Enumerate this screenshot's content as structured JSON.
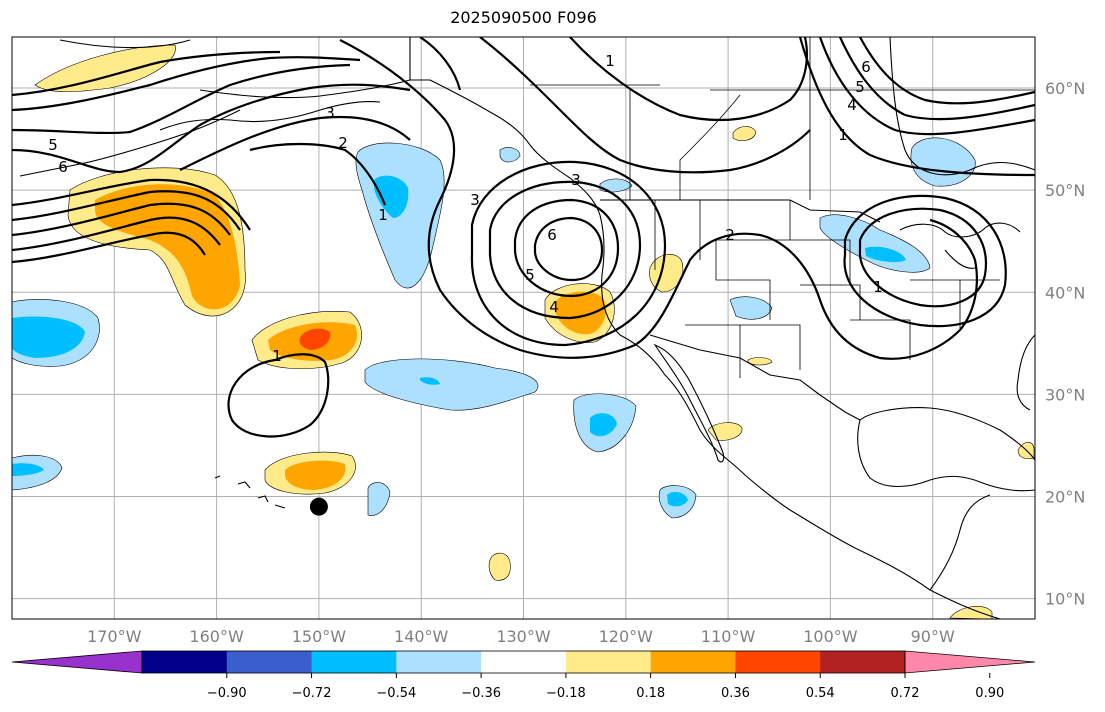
{
  "title": "2025090500 F096",
  "map": {
    "projection": "cylindrical",
    "extent": {
      "lon": [
        -180,
        -80
      ],
      "lat": [
        8,
        65
      ]
    },
    "lon_ticks": [
      "170°W",
      "160°W",
      "150°W",
      "140°W",
      "130°W",
      "120°W",
      "110°W",
      "100°W",
      "90°W"
    ],
    "lat_ticks": [
      "60°N",
      "50°N",
      "40°N",
      "30°N",
      "20°N",
      "10°N"
    ],
    "grid": true,
    "marker": {
      "lon": -150,
      "lat": 19,
      "symbol": "black-dot"
    }
  },
  "contour_labels": [
    "5",
    "6",
    "3",
    "2",
    "1",
    "6",
    "5",
    "4",
    "3",
    "6",
    "5",
    "4",
    "1",
    "1",
    "1",
    "1",
    "2",
    "3"
  ],
  "colorbar": {
    "ticks": [
      "−0.90",
      "−0.72",
      "−0.54",
      "−0.36",
      "−0.18",
      "0.18",
      "0.36",
      "0.54",
      "0.72",
      "0.90"
    ],
    "colors": [
      "#9932CC",
      "#00008B",
      "#3A5FCD",
      "#00BFFF",
      "#ADE0FF",
      "#FFFFFF",
      "#FFEB8A",
      "#FFA500",
      "#FF4500",
      "#B22222",
      "#FF88AA"
    ],
    "extend": "both"
  }
}
